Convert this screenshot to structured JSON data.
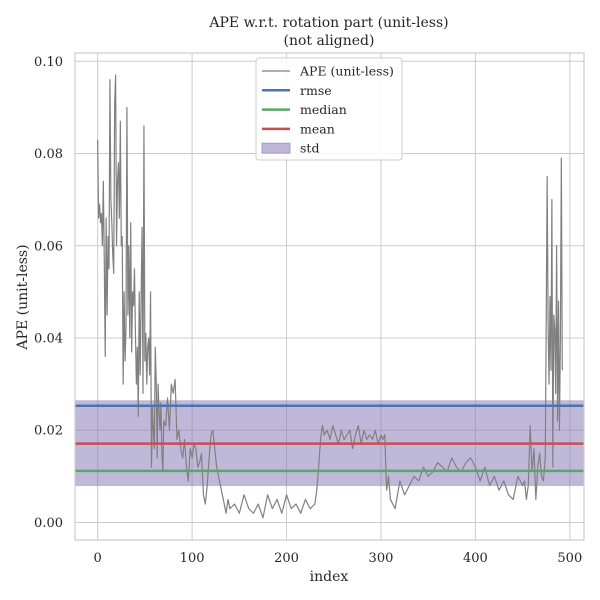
{
  "chart_data": {
    "type": "line",
    "title": "APE w.r.t. rotation part (unit-less)",
    "subtitle": "(not aligned)",
    "xlabel": "index",
    "ylabel": "APE (unit-less)",
    "xlim": [
      -24,
      515
    ],
    "ylim": [
      -0.0038,
      0.1018
    ],
    "xticks": [
      0,
      100,
      200,
      300,
      400,
      500
    ],
    "xtick_labels": [
      "0",
      "100",
      "200",
      "300",
      "400",
      "500"
    ],
    "yticks": [
      0.0,
      0.02,
      0.04,
      0.06,
      0.08,
      0.1
    ],
    "ytick_labels": [
      "0.00",
      "0.02",
      "0.04",
      "0.06",
      "0.08",
      "0.10"
    ],
    "grid": true,
    "legend_placement": "top-center",
    "legend": [
      {
        "label": "APE (unit-less)",
        "kind": "line-thin",
        "color": "#808080"
      },
      {
        "label": "rmse",
        "kind": "line",
        "color": "#4c72b0"
      },
      {
        "label": "median",
        "kind": "line",
        "color": "#55a868"
      },
      {
        "label": "mean",
        "kind": "line",
        "color": "#c44e52"
      },
      {
        "label": "std",
        "kind": "patch",
        "color": "#8172b3"
      }
    ],
    "stats": {
      "rmse": 0.0253,
      "median": 0.0112,
      "mean": 0.0171,
      "std_low": 0.0079,
      "std_high": 0.0265
    },
    "colors": {
      "ape": "#808080",
      "rmse": "#4c72b0",
      "median": "#55a868",
      "mean": "#c44e52",
      "std": "#8172b3",
      "grid": "#cccccc",
      "frame": "#cccccc"
    },
    "series": [
      {
        "name": "APE (unit-less)",
        "x": [
          0,
          1,
          2,
          3,
          4,
          5,
          6,
          7,
          8,
          9,
          10,
          11,
          12,
          13,
          14,
          15,
          16,
          17,
          18,
          19,
          20,
          21,
          22,
          23,
          24,
          25,
          26,
          27,
          28,
          29,
          30,
          31,
          32,
          33,
          34,
          35,
          36,
          37,
          38,
          39,
          40,
          41,
          42,
          43,
          44,
          45,
          46,
          47,
          48,
          49,
          50,
          51,
          52,
          53,
          54,
          55,
          56,
          57,
          58,
          59,
          60,
          61,
          62,
          63,
          64,
          65,
          66,
          67,
          68,
          69,
          70,
          72,
          74,
          76,
          78,
          80,
          82,
          84,
          86,
          88,
          90,
          92,
          94,
          96,
          98,
          100,
          102,
          104,
          106,
          108,
          110,
          112,
          114,
          116,
          118,
          120,
          122,
          124,
          126,
          128,
          130,
          132,
          134,
          136,
          138,
          140,
          145,
          150,
          155,
          160,
          165,
          170,
          175,
          180,
          185,
          190,
          195,
          200,
          205,
          210,
          215,
          220,
          225,
          230,
          232,
          234,
          236,
          238,
          240,
          243,
          246,
          249,
          252,
          255,
          258,
          261,
          264,
          267,
          270,
          273,
          276,
          279,
          282,
          285,
          288,
          291,
          294,
          297,
          300,
          302,
          304,
          306,
          308,
          310,
          315,
          320,
          325,
          330,
          335,
          340,
          345,
          350,
          355,
          360,
          365,
          370,
          375,
          380,
          385,
          390,
          395,
          400,
          405,
          410,
          415,
          420,
          425,
          430,
          435,
          440,
          445,
          450,
          452,
          454,
          456,
          458,
          460,
          462,
          464,
          466,
          468,
          470,
          472,
          474,
          476,
          477,
          478,
          479,
          480,
          481,
          482,
          483,
          484,
          485,
          486,
          487,
          488,
          489,
          490,
          491,
          492
        ],
        "y": [
          0.083,
          0.066,
          0.069,
          0.065,
          0.067,
          0.06,
          0.074,
          0.057,
          0.036,
          0.066,
          0.045,
          0.062,
          0.055,
          0.096,
          0.07,
          0.065,
          0.058,
          0.054,
          0.091,
          0.097,
          0.06,
          0.074,
          0.078,
          0.066,
          0.087,
          0.06,
          0.062,
          0.03,
          0.05,
          0.035,
          0.042,
          0.09,
          0.045,
          0.06,
          0.04,
          0.065,
          0.037,
          0.05,
          0.047,
          0.055,
          0.041,
          0.03,
          0.038,
          0.023,
          0.05,
          0.032,
          0.048,
          0.064,
          0.028,
          0.086,
          0.035,
          0.041,
          0.03,
          0.038,
          0.04,
          0.032,
          0.05,
          0.012,
          0.025,
          0.02,
          0.016,
          0.038,
          0.031,
          0.014,
          0.03,
          0.024,
          0.02,
          0.026,
          0.015,
          0.011,
          0.022,
          0.021,
          0.027,
          0.02,
          0.03,
          0.028,
          0.031,
          0.018,
          0.02,
          0.016,
          0.014,
          0.018,
          0.012,
          0.009,
          0.016,
          0.014,
          0.017,
          0.016,
          0.012,
          0.013,
          0.015,
          0.006,
          0.004,
          0.008,
          0.014,
          0.019,
          0.02,
          0.016,
          0.012,
          0.01,
          0.008,
          0.006,
          0.004,
          0.002,
          0.005,
          0.003,
          0.004,
          0.002,
          0.006,
          0.003,
          0.002,
          0.004,
          0.001,
          0.006,
          0.003,
          0.005,
          0.002,
          0.006,
          0.003,
          0.004,
          0.002,
          0.005,
          0.003,
          0.004,
          0.007,
          0.012,
          0.018,
          0.021,
          0.019,
          0.02,
          0.018,
          0.021,
          0.019,
          0.017,
          0.02,
          0.018,
          0.019,
          0.02,
          0.016,
          0.019,
          0.021,
          0.017,
          0.02,
          0.018,
          0.019,
          0.018,
          0.02,
          0.017,
          0.019,
          0.018,
          0.019,
          0.007,
          0.01,
          0.005,
          0.003,
          0.009,
          0.006,
          0.008,
          0.01,
          0.009,
          0.012,
          0.01,
          0.011,
          0.013,
          0.012,
          0.011,
          0.014,
          0.012,
          0.011,
          0.013,
          0.014,
          0.012,
          0.009,
          0.012,
          0.008,
          0.01,
          0.007,
          0.009,
          0.006,
          0.005,
          0.01,
          0.008,
          0.009,
          0.005,
          0.008,
          0.021,
          0.011,
          0.016,
          0.005,
          0.012,
          0.015,
          0.01,
          0.009,
          0.014,
          0.075,
          0.042,
          0.03,
          0.049,
          0.033,
          0.07,
          0.012,
          0.045,
          0.042,
          0.028,
          0.06,
          0.022,
          0.048,
          0.02,
          0.04,
          0.079,
          0.033
        ]
      }
    ]
  }
}
